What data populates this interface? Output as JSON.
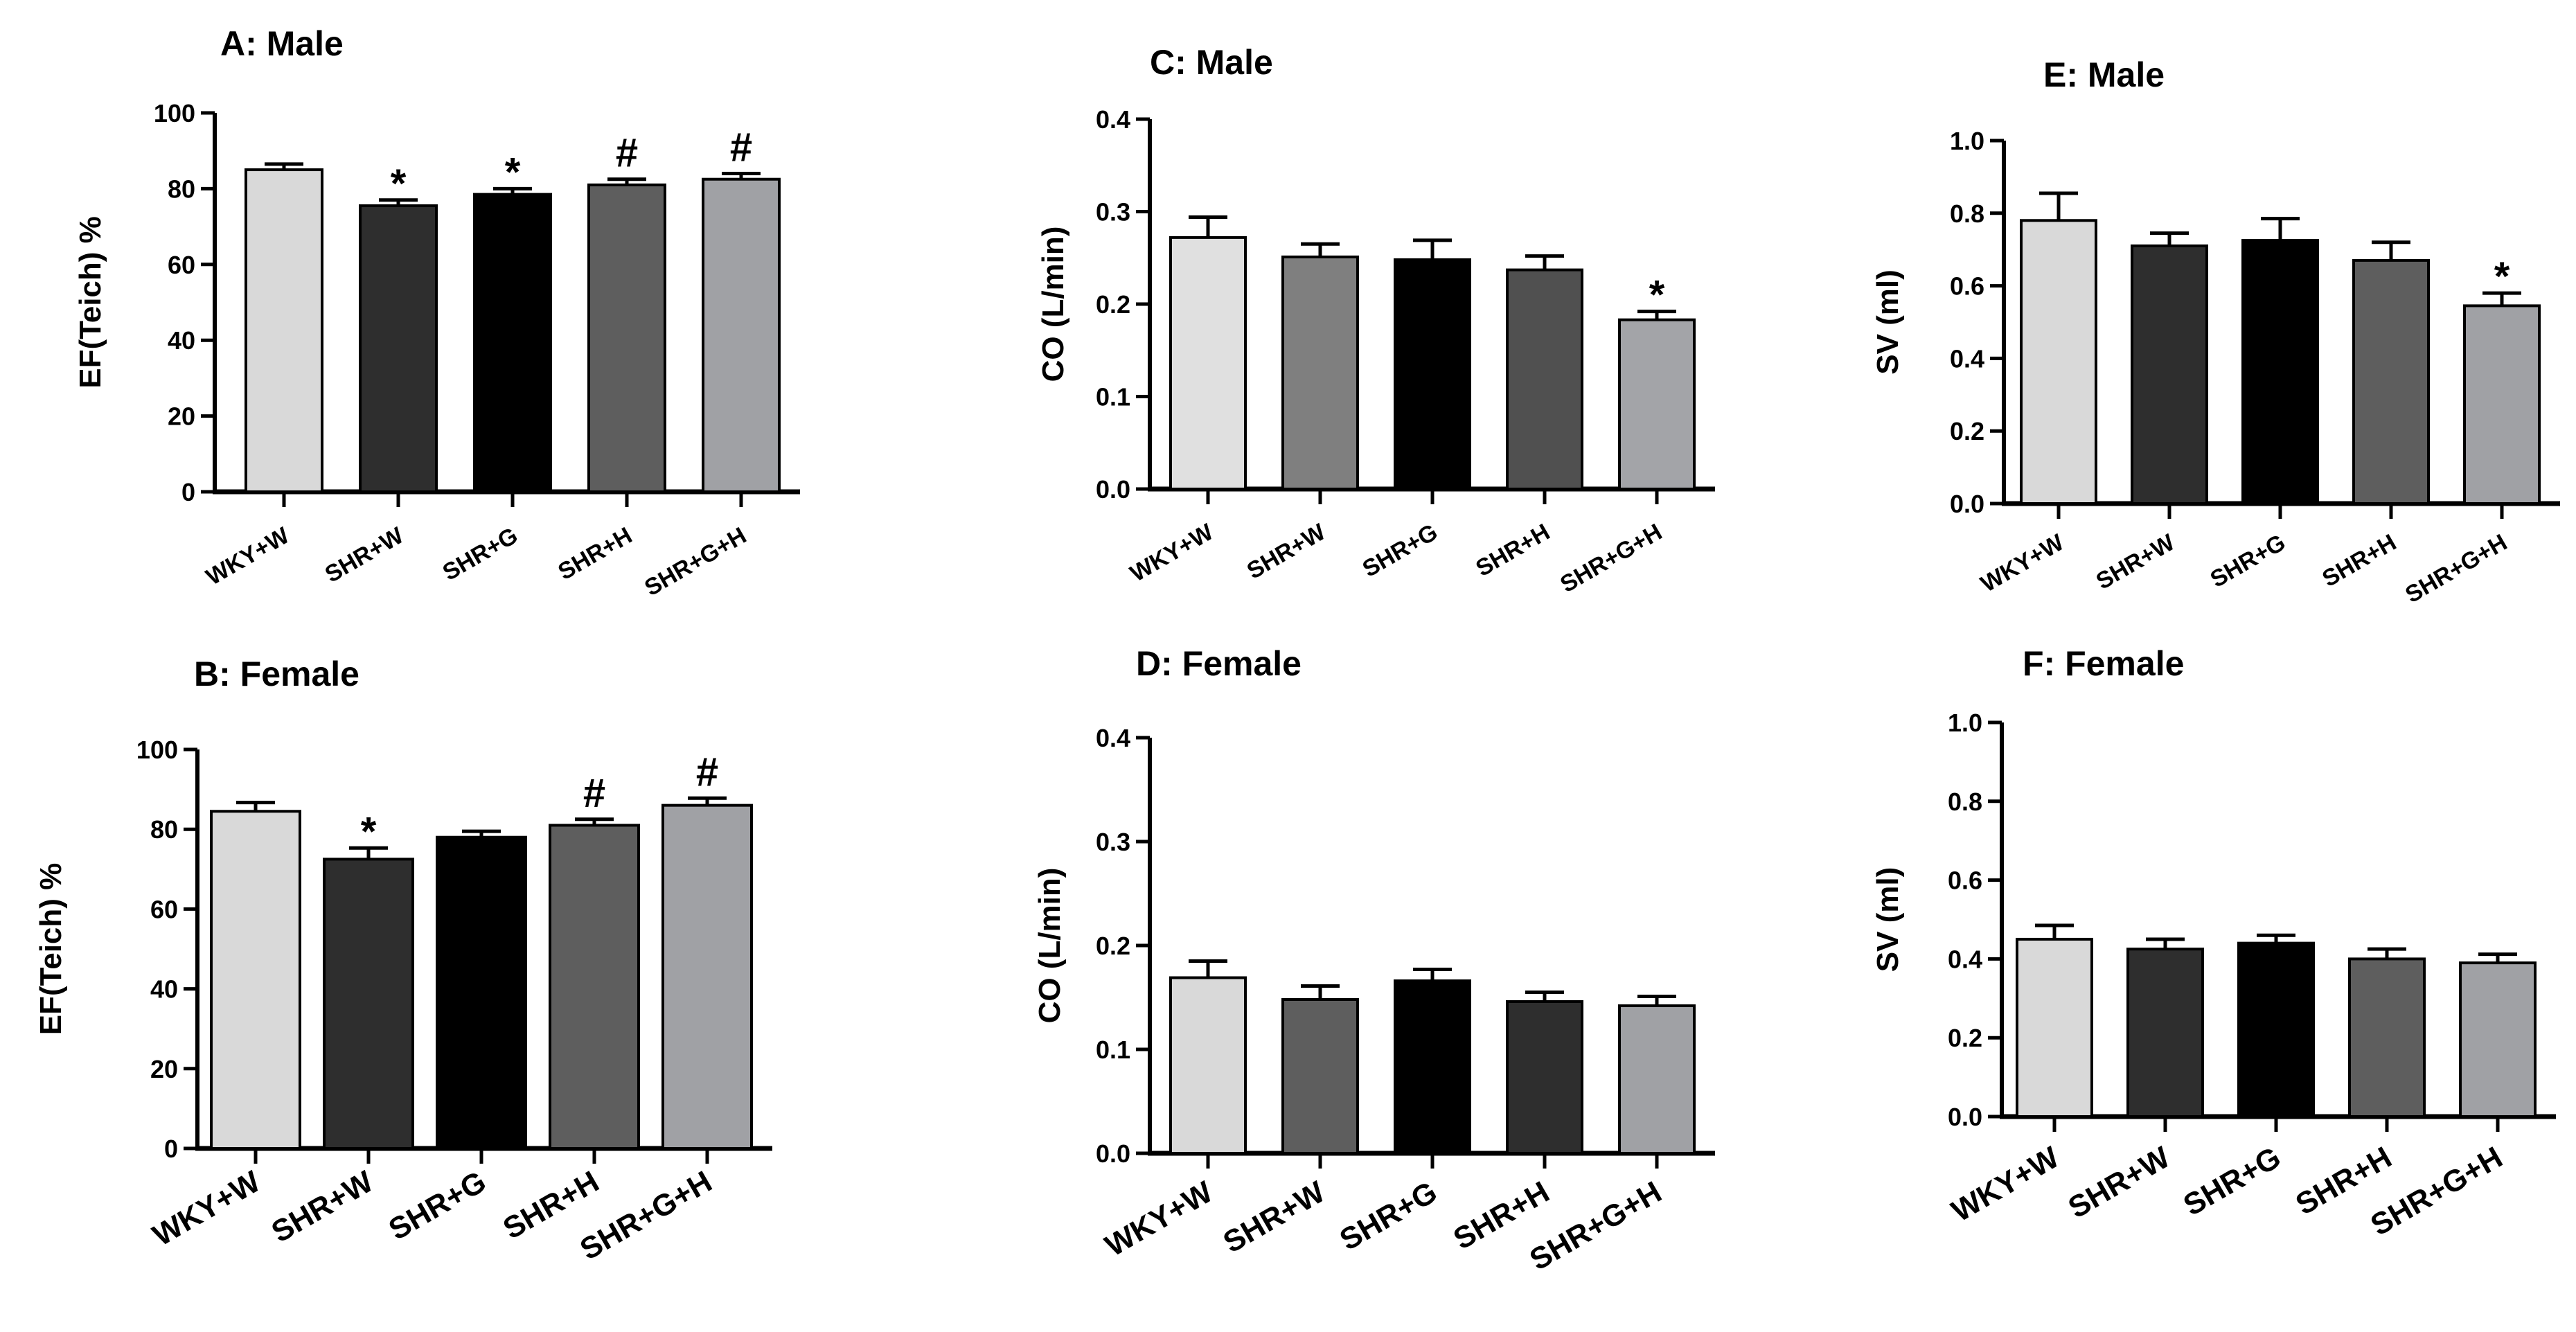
{
  "chart_data": [
    {
      "panel": "A",
      "type": "bar",
      "title": "A: Male",
      "ylabel": "EF(Teich) %",
      "ylim": [
        0,
        100
      ],
      "yticks": [
        "0",
        "20",
        "40",
        "60",
        "80",
        "100"
      ],
      "categories": [
        "WKY+W",
        "SHR+W",
        "SHR+G",
        "SHR+H",
        "SHR+G+H"
      ],
      "values": [
        85,
        75.5,
        78.5,
        81,
        82.5
      ],
      "errors": [
        1.5,
        1.5,
        1.5,
        1.5,
        1.5
      ],
      "colors": [
        "#d9d9d9",
        "#2e2e2e",
        "#000000",
        "#5e5e5e",
        "#a0a1a5"
      ],
      "annotations": [
        "",
        "*",
        "*",
        "#",
        "#"
      ]
    },
    {
      "panel": "B",
      "type": "bar",
      "title": "B: Female",
      "ylabel": "EF(Teich) %",
      "ylim": [
        0,
        100
      ],
      "yticks": [
        "0",
        "20",
        "40",
        "60",
        "80",
        "100"
      ],
      "categories": [
        "WKY+W",
        "SHR+W",
        "SHR+G",
        "SHR+H",
        "SHR+G+H"
      ],
      "values": [
        84.5,
        72.5,
        78,
        81,
        86
      ],
      "errors": [
        2.2,
        2.8,
        1.5,
        1.5,
        1.8
      ],
      "colors": [
        "#d9d9d9",
        "#2e2e2e",
        "#000000",
        "#5e5e5e",
        "#a0a1a5"
      ],
      "annotations": [
        "",
        "*",
        "",
        "#",
        "#"
      ]
    },
    {
      "panel": "C",
      "type": "bar",
      "title": "C: Male",
      "ylabel": "CO (L/min)",
      "ylim": [
        0,
        0.4
      ],
      "yticks": [
        "0.0",
        "0.1",
        "0.2",
        "0.3",
        "0.4"
      ],
      "categories": [
        "WKY+W",
        "SHR+W",
        "SHR+G",
        "SHR+H",
        "SHR+G+H"
      ],
      "values": [
        0.272,
        0.251,
        0.248,
        0.237,
        0.183
      ],
      "errors": [
        0.022,
        0.014,
        0.021,
        0.015,
        0.009
      ],
      "colors": [
        "#e0e0e0",
        "#7f7f7f",
        "#000000",
        "#505050",
        "#a3a4a8"
      ],
      "annotations": [
        "",
        "",
        "",
        "",
        "*"
      ]
    },
    {
      "panel": "D",
      "type": "bar",
      "title": "D: Female",
      "ylabel": "CO (L/min)",
      "ylim": [
        0,
        0.4
      ],
      "yticks": [
        "0.0",
        "0.1",
        "0.2",
        "0.3",
        "0.4"
      ],
      "categories": [
        "WKY+W",
        "SHR+W",
        "SHR+G",
        "SHR+H",
        "SHR+G+H"
      ],
      "values": [
        0.169,
        0.148,
        0.166,
        0.146,
        0.142
      ],
      "errors": [
        0.016,
        0.013,
        0.011,
        0.009,
        0.009
      ],
      "colors": [
        "#d9d9d9",
        "#5e5e5e",
        "#000000",
        "#2e2e2e",
        "#a0a1a5"
      ],
      "annotations": [
        "",
        "",
        "",
        "",
        ""
      ]
    },
    {
      "panel": "E",
      "type": "bar",
      "title": "E: Male",
      "ylabel": "SV (ml)",
      "ylim": [
        0,
        1.0
      ],
      "yticks": [
        "0.0",
        "0.2",
        "0.4",
        "0.6",
        "0.8",
        "1.0"
      ],
      "categories": [
        "WKY+W",
        "SHR+W",
        "SHR+G",
        "SHR+H",
        "SHR+G+H"
      ],
      "values": [
        0.78,
        0.71,
        0.725,
        0.67,
        0.545
      ],
      "errors": [
        0.075,
        0.035,
        0.06,
        0.05,
        0.035
      ],
      "colors": [
        "#d9d9d9",
        "#2e2e2e",
        "#000000",
        "#5e5e5e",
        "#a0a1a5"
      ],
      "annotations": [
        "",
        "",
        "",
        "",
        "*"
      ]
    },
    {
      "panel": "F",
      "type": "bar",
      "title": "F: Female",
      "ylabel": "SV (ml)",
      "ylim": [
        0,
        1.0
      ],
      "yticks": [
        "0.0",
        "0.2",
        "0.4",
        "0.6",
        "0.8",
        "1.0"
      ],
      "categories": [
        "WKY+W",
        "SHR+W",
        "SHR+G",
        "SHR+H",
        "SHR+G+H"
      ],
      "values": [
        0.45,
        0.425,
        0.44,
        0.4,
        0.39
      ],
      "errors": [
        0.035,
        0.025,
        0.02,
        0.025,
        0.022
      ],
      "colors": [
        "#d9d9d9",
        "#2e2e2e",
        "#000000",
        "#5e5e5e",
        "#a0a1a5"
      ],
      "annotations": [
        "",
        "",
        "",
        "",
        ""
      ]
    }
  ]
}
